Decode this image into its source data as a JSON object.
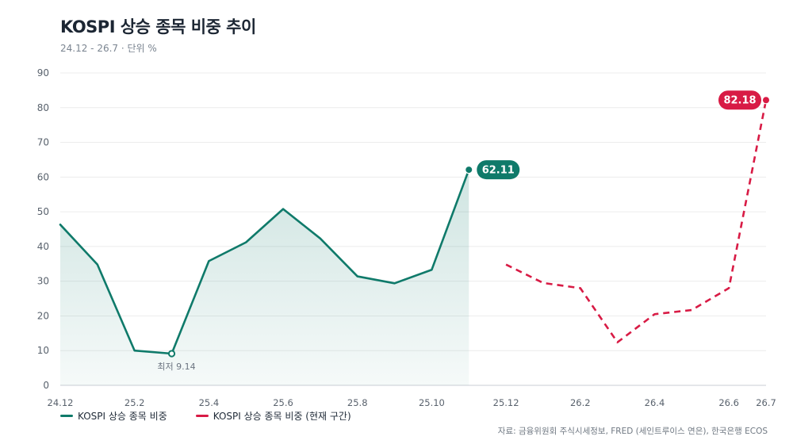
{
  "header": {
    "title": "KOSPI 상승 종목 비중 추이",
    "subtitle": "24.12 - 26.7 · 단위 %"
  },
  "legend": [
    {
      "label": "KOSPI 상승 종목 비중",
      "color": "#0f7a6a"
    },
    {
      "label": "KOSPI 상승 종목 비중 (현재 구간)",
      "color": "#d81b45"
    }
  ],
  "source": "자료: 금융위원회 주식시세정보, FRED (세인트루이스 연은), 한국은행 ECOS",
  "colors": {
    "historical": "#0f7a6a",
    "current": "#d81b45",
    "grid": "#ececec",
    "area": "#0f7a6a"
  },
  "chart_data": {
    "type": "line",
    "x_ticks": [
      "24.12",
      "25.2",
      "25.4",
      "25.6",
      "25.8",
      "25.10",
      "25.12",
      "26.2",
      "26.4",
      "26.6",
      "26.7"
    ],
    "ylim": [
      0,
      90
    ],
    "y_ticks": [
      0,
      10,
      20,
      30,
      40,
      50,
      60,
      70,
      80,
      90
    ],
    "grid": true,
    "legend_position": "bottom-left",
    "series": [
      {
        "name": "KOSPI 상승 종목 비중",
        "style": "solid",
        "area": true,
        "points": [
          {
            "x": "24.12",
            "y": 46.3
          },
          {
            "x": "25.1",
            "y": 34.8
          },
          {
            "x": "25.2",
            "y": 10.0
          },
          {
            "x": "25.3",
            "y": 9.14
          },
          {
            "x": "25.4",
            "y": 35.8
          },
          {
            "x": "25.5",
            "y": 41.2
          },
          {
            "x": "25.6",
            "y": 50.8
          },
          {
            "x": "25.7",
            "y": 42.3
          },
          {
            "x": "25.8",
            "y": 31.4
          },
          {
            "x": "25.9",
            "y": 29.4
          },
          {
            "x": "25.10",
            "y": 33.3
          },
          {
            "x": "25.11",
            "y": 62.11
          }
        ]
      },
      {
        "name": "KOSPI 상승 종목 비중 (현재 구간)",
        "style": "dashed",
        "points": [
          {
            "x": "25.12",
            "y": 34.8
          },
          {
            "x": "26.1",
            "y": 29.5
          },
          {
            "x": "26.2",
            "y": 28.0
          },
          {
            "x": "26.3",
            "y": 12.4
          },
          {
            "x": "26.4",
            "y": 20.5
          },
          {
            "x": "26.5",
            "y": 21.7
          },
          {
            "x": "26.6",
            "y": 28.0
          },
          {
            "x": "26.7",
            "y": 82.18
          }
        ]
      }
    ],
    "annotations": [
      {
        "series": 0,
        "point": 3,
        "text": "최저 9.14",
        "kind": "min"
      },
      {
        "series": 0,
        "point": 11,
        "text": "62.11",
        "kind": "badge"
      },
      {
        "series": 1,
        "point": 7,
        "text": "82.18",
        "kind": "badge"
      }
    ]
  }
}
